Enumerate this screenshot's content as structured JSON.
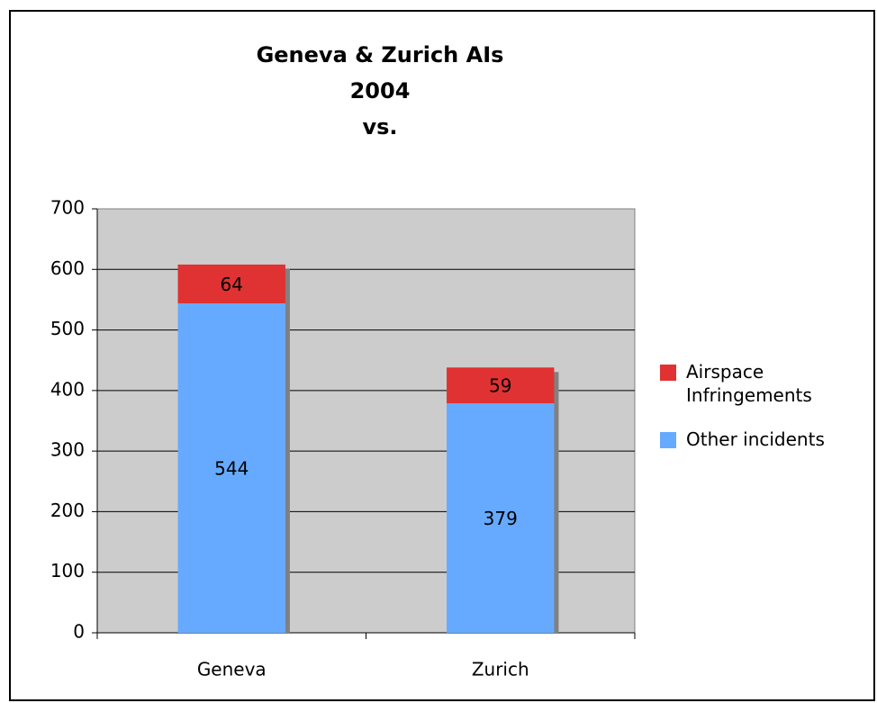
{
  "chart_data": {
    "type": "stacked_bar",
    "title": [
      "Geneva & Zurich AIs",
      "2004",
      "vs."
    ],
    "categories": [
      "Geneva",
      "Zurich"
    ],
    "series": [
      {
        "name": "Other incidents",
        "color": "#66aaff",
        "values": [
          544,
          379
        ]
      },
      {
        "name": "Airspace Infringements",
        "color": "#e03232",
        "values": [
          64,
          59
        ]
      }
    ],
    "ylim": [
      0,
      700
    ],
    "yticks": [
      0,
      100,
      200,
      300,
      400,
      500,
      600,
      700
    ],
    "grid": true,
    "legend": "right"
  }
}
